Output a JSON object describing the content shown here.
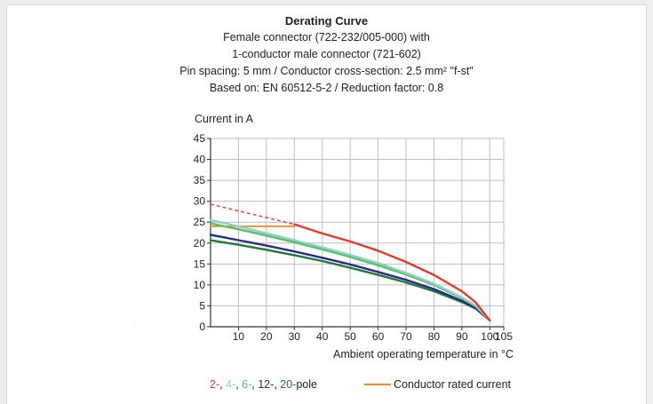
{
  "title": "Derating Curve",
  "subtitle_lines": [
    "Female connector (722-232/005-000) with",
    "1-conductor male connector (721-602)",
    "Pin spacing: 5 mm / Conductor cross-section: 2.5 mm² \"f-st\"",
    "Based on: EN 60512-5-2 / Reduction factor: 0.8"
  ],
  "legend": {
    "pole_parts": [
      {
        "text": "2-",
        "color": "#e8382c"
      },
      {
        "text": ", ",
        "color": "#222222"
      },
      {
        "text": "4-",
        "color": "#8fd0c8"
      },
      {
        "text": ", ",
        "color": "#222222"
      },
      {
        "text": "6-",
        "color": "#5bbf6a"
      },
      {
        "text": ", ",
        "color": "#222222"
      },
      {
        "text": "12-",
        "color": "#2d2a87"
      },
      {
        "text": ", ",
        "color": "#222222"
      },
      {
        "text": "20-",
        "color": "#1f7a3a"
      },
      {
        "text": "pole",
        "color": "#222222"
      }
    ],
    "rated_label": "Conductor rated current"
  },
  "chart_data": {
    "type": "line",
    "title": "Derating Curve",
    "xlabel": "Ambient operating temperature in °C",
    "ylabel": "Current in A",
    "xlim": [
      0,
      105
    ],
    "ylim": [
      0,
      45
    ],
    "x_ticks": [
      10,
      20,
      30,
      40,
      50,
      60,
      70,
      80,
      90,
      100,
      105
    ],
    "y_ticks": [
      0,
      5,
      10,
      15,
      20,
      25,
      30,
      35,
      40,
      45
    ],
    "grid": true,
    "series": [
      {
        "name": "2-pole",
        "color": "#e8382c",
        "x": [
          30,
          40,
          50,
          60,
          70,
          80,
          90,
          95,
          100
        ],
        "y": [
          24.5,
          22.3,
          20.4,
          18.2,
          15.5,
          12.4,
          8.5,
          5.8,
          1.5
        ],
        "dashed_extension": {
          "x": [
            0,
            30
          ],
          "y": [
            29.3,
            24.5
          ]
        }
      },
      {
        "name": "4-pole",
        "color": "#8fd0c8",
        "x": [
          0,
          10,
          20,
          30,
          40,
          50,
          60,
          70,
          80,
          90,
          95,
          100
        ],
        "y": [
          25.5,
          24.0,
          22.3,
          20.7,
          19.0,
          17.2,
          15.2,
          12.9,
          10.3,
          7.0,
          5.0,
          1.5
        ]
      },
      {
        "name": "6-pole",
        "color": "#5bbf6a",
        "x": [
          0,
          10,
          20,
          30,
          40,
          50,
          60,
          70,
          80,
          90,
          95,
          100
        ],
        "y": [
          24.7,
          23.3,
          21.8,
          20.2,
          18.5,
          16.7,
          14.7,
          12.5,
          10.0,
          6.8,
          4.9,
          1.5
        ]
      },
      {
        "name": "12-pole",
        "color": "#2d2a87",
        "x": [
          0,
          10,
          20,
          30,
          40,
          50,
          60,
          70,
          80,
          90,
          95,
          100
        ],
        "y": [
          22.0,
          20.7,
          19.4,
          18.0,
          16.5,
          14.9,
          13.1,
          11.2,
          9.0,
          6.2,
          4.5,
          1.5
        ]
      },
      {
        "name": "20-pole",
        "color": "#1f7a3a",
        "x": [
          0,
          10,
          20,
          30,
          40,
          50,
          60,
          70,
          80,
          90,
          95,
          100
        ],
        "y": [
          20.7,
          19.6,
          18.4,
          17.1,
          15.7,
          14.1,
          12.4,
          10.6,
          8.5,
          5.9,
          4.3,
          1.5
        ]
      },
      {
        "name": "Conductor rated current",
        "color": "#f08a24",
        "x": [
          0,
          30
        ],
        "y": [
          24.0,
          24.0
        ]
      }
    ]
  }
}
